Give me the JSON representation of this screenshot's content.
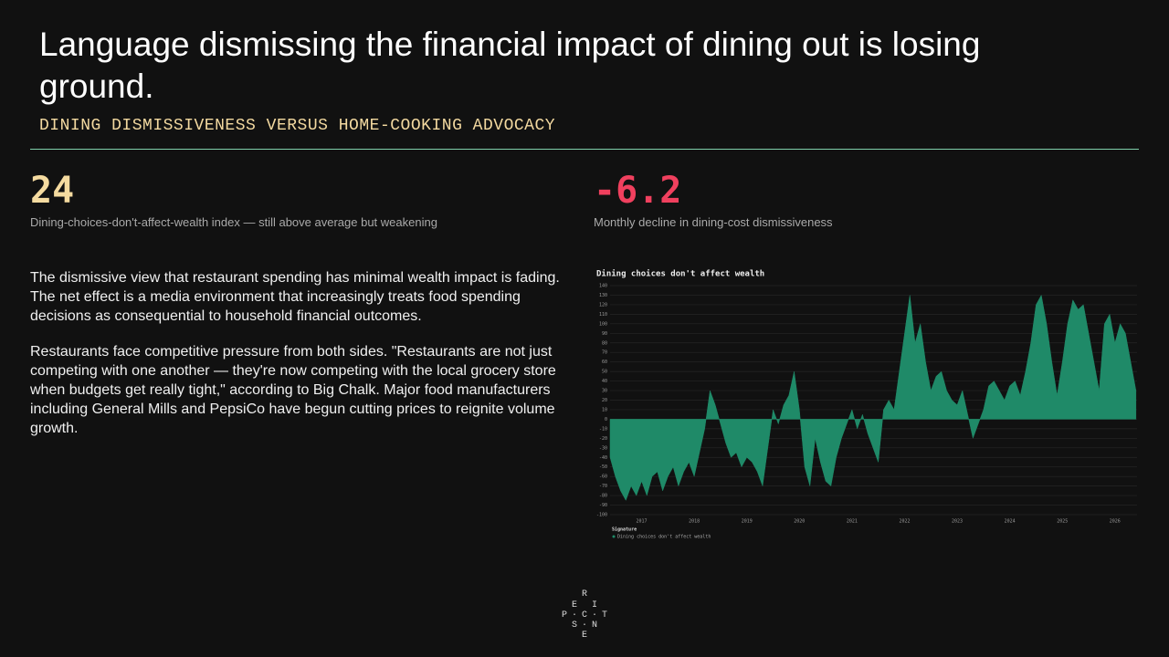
{
  "header": {
    "title": "Language dismissing the financial impact of dining out is losing ground.",
    "subtitle": "DINING DISMISSIVENESS VERSUS HOME-COOKING ADVOCACY"
  },
  "stats": [
    {
      "value": 24,
      "caption": "Dining-choices-don't-affect-wealth index — still above average but weakening"
    },
    {
      "value": -6.2,
      "caption": "Monthly decline in dining-cost dismissiveness"
    }
  ],
  "paragraphs": [
    "The dismissive view that restaurant spending has minimal wealth impact is fading. The net effect is a media environment that increasingly treats food spending decisions as consequential to household financial outcomes.",
    "Restaurants face competitive pressure from both sides. \"Restaurants are not just competing with one another — they're now competing with the local grocery store when budgets get really tight,\" according to Big Chalk. Major food manufacturers including General Mills and PepsiCo have begun cutting prices to reignite volume growth."
  ],
  "logo": [
    "R",
    "E",
    "I",
    "P",
    "C",
    "T",
    "S",
    "N",
    "E"
  ],
  "chart_data": {
    "type": "area",
    "title": "Dining choices don't affect wealth",
    "legend_title": "Signature",
    "x": [
      2016.4,
      2016.5,
      2016.6,
      2016.7,
      2016.8,
      2016.9,
      2017.0,
      2017.1,
      2017.2,
      2017.3,
      2017.4,
      2017.5,
      2017.6,
      2017.7,
      2017.8,
      2017.9,
      2018.0,
      2018.1,
      2018.2,
      2018.3,
      2018.4,
      2018.5,
      2018.6,
      2018.7,
      2018.8,
      2018.9,
      2019.0,
      2019.1,
      2019.2,
      2019.3,
      2019.4,
      2019.5,
      2019.6,
      2019.7,
      2019.8,
      2019.9,
      2020.0,
      2020.1,
      2020.2,
      2020.3,
      2020.4,
      2020.5,
      2020.6,
      2020.7,
      2020.8,
      2020.9,
      2021.0,
      2021.1,
      2021.2,
      2021.3,
      2021.4,
      2021.5,
      2021.6,
      2021.7,
      2021.8,
      2021.9,
      2022.0,
      2022.1,
      2022.2,
      2022.3,
      2022.4,
      2022.5,
      2022.6,
      2022.7,
      2022.8,
      2022.9,
      2023.0,
      2023.1,
      2023.2,
      2023.3,
      2023.4,
      2023.5,
      2023.6,
      2023.7,
      2023.8,
      2023.9,
      2024.0,
      2024.1,
      2024.2,
      2024.3,
      2024.4,
      2024.5,
      2024.6,
      2024.7,
      2024.8,
      2024.9,
      2025.0,
      2025.1,
      2025.2,
      2025.3,
      2025.4,
      2025.5,
      2025.6,
      2025.7,
      2025.8,
      2025.9,
      2026.0,
      2026.1,
      2026.2,
      2026.3,
      2026.4
    ],
    "series": [
      {
        "name": "Dining choices don't affect wealth",
        "color": "#1f8a68",
        "values": [
          -40,
          -60,
          -75,
          -85,
          -70,
          -80,
          -65,
          -80,
          -60,
          -55,
          -75,
          -60,
          -50,
          -70,
          -55,
          -45,
          -60,
          -35,
          -10,
          30,
          15,
          -5,
          -25,
          -40,
          -35,
          -50,
          -40,
          -45,
          -55,
          -70,
          -30,
          10,
          -5,
          15,
          25,
          50,
          10,
          -50,
          -70,
          -20,
          -45,
          -65,
          -70,
          -40,
          -20,
          -5,
          10,
          -10,
          5,
          -15,
          -30,
          -45,
          10,
          20,
          10,
          50,
          90,
          130,
          80,
          100,
          60,
          30,
          45,
          50,
          30,
          20,
          15,
          30,
          5,
          -20,
          -5,
          10,
          35,
          40,
          30,
          20,
          35,
          40,
          25,
          50,
          80,
          120,
          130,
          100,
          60,
          25,
          60,
          100,
          125,
          115,
          120,
          90,
          60,
          30,
          100,
          110,
          80,
          100,
          90,
          60,
          30
        ]
      }
    ],
    "xlim": [
      2016.4,
      2026.42
    ],
    "xticks": [
      2017,
      2018,
      2019,
      2020,
      2021,
      2022,
      2023,
      2024,
      2025,
      2026
    ],
    "ylim": [
      -100,
      140
    ],
    "yticks": [
      -100,
      -90,
      -80,
      -70,
      -60,
      -50,
      -40,
      -30,
      -20,
      -10,
      0,
      10,
      20,
      30,
      40,
      50,
      60,
      70,
      80,
      90,
      100,
      110,
      120,
      130,
      140
    ],
    "grid": true
  }
}
